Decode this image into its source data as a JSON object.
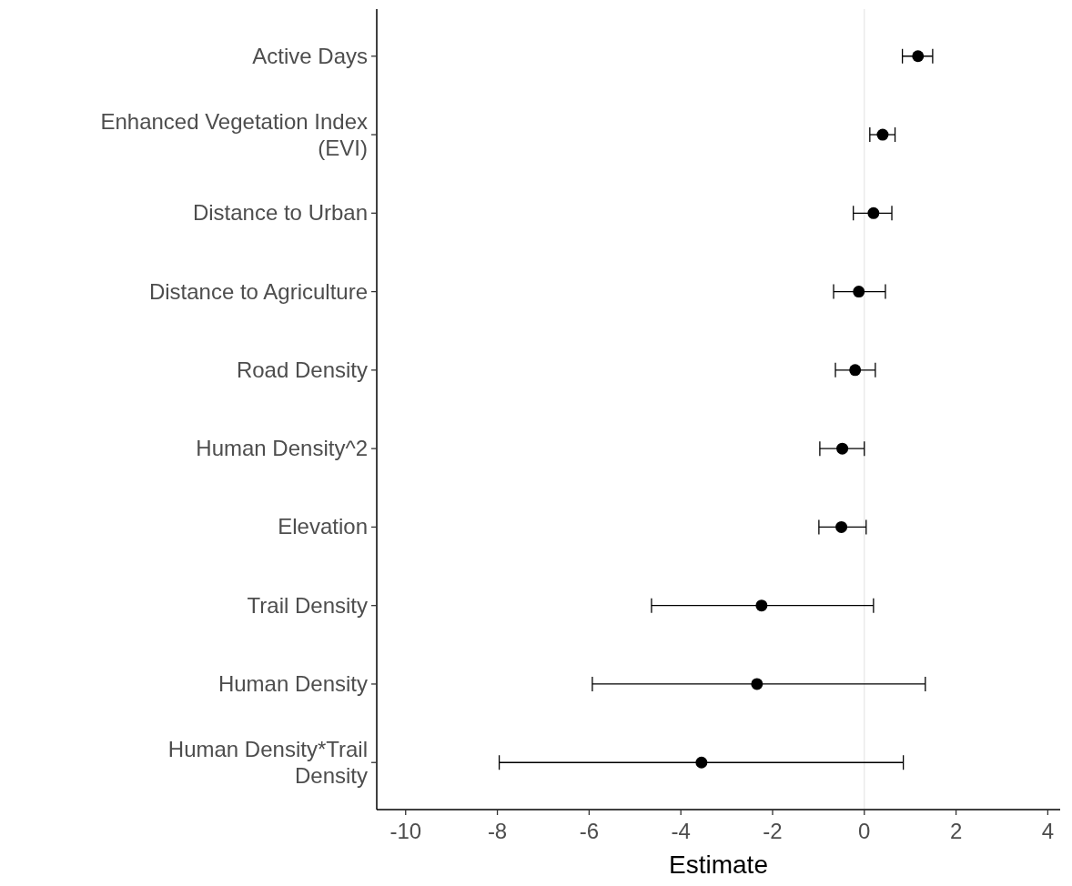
{
  "chart_data": {
    "type": "scatter",
    "orientation": "horizontal",
    "xlabel": "Estimate",
    "categories": [
      "Active Days",
      "Enhanced Vegetation Index (EVI)",
      "Distance to Urban",
      "Distance to Agriculture",
      "Road Density",
      "Human Density^2",
      "Elevation",
      "Trail Density",
      "Human Density",
      "Human Density*Trail Density"
    ],
    "series": [
      {
        "color": "#000000",
        "values": [
          1.17,
          0.4,
          0.2,
          -0.12,
          -0.2,
          -0.48,
          -0.5,
          -2.24,
          -2.34,
          -3.55
        ],
        "errors": [
          [
            0.83,
            1.49
          ],
          [
            0.12,
            0.67
          ],
          [
            -0.24,
            0.6
          ],
          [
            -0.67,
            0.46
          ],
          [
            -0.63,
            0.24
          ],
          [
            -0.97,
            0
          ],
          [
            -0.99,
            0.04
          ],
          [
            -4.64,
            0.2
          ],
          [
            -5.93,
            1.33
          ],
          [
            -7.96,
            0.85
          ]
        ]
      }
    ],
    "xlim": [
      -10.63,
      4.27
    ],
    "xticks": [
      -10,
      -8,
      -6,
      -4,
      -2,
      0,
      2,
      4
    ],
    "ref_lines": [
      {
        "axis": "x",
        "value": 0,
        "color": "#e6e6e6"
      }
    ],
    "marker": "circle",
    "grid": false
  }
}
